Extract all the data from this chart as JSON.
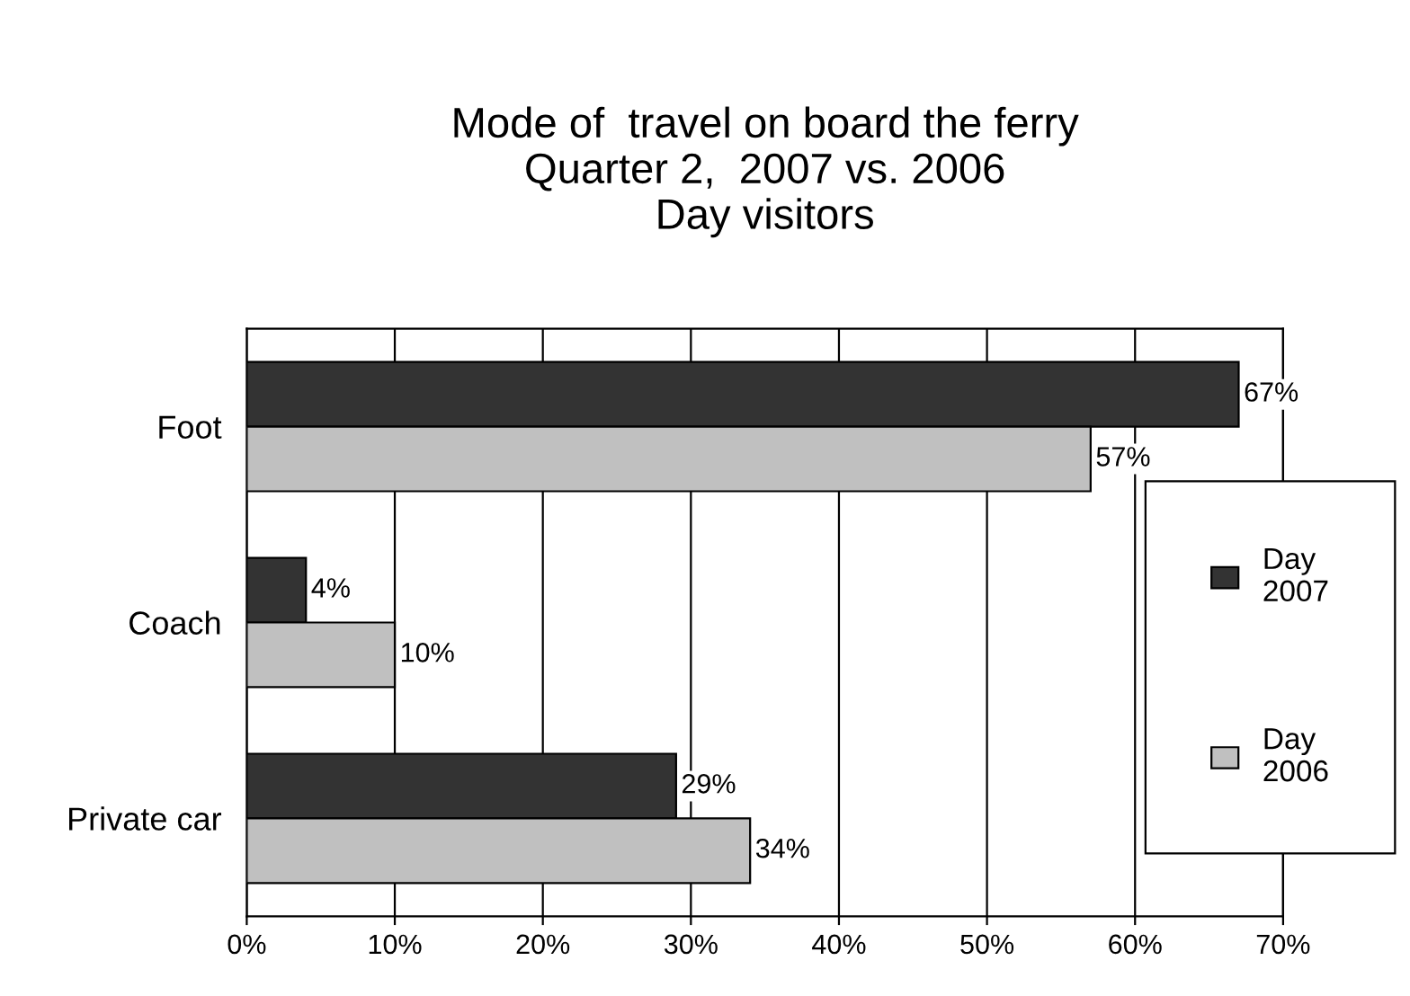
{
  "chart_data": {
    "type": "bar",
    "orientation": "horizontal",
    "title": "Mode of  travel on board the ferry\nQuarter 2,  2007 vs. 2006\nDay visitors",
    "categories": [
      "Foot",
      "Coach",
      "Private car"
    ],
    "series": [
      {
        "name": "Day 2007",
        "color": "#333333",
        "values": [
          67,
          4,
          29
        ],
        "value_labels": [
          "67%",
          "4%",
          "29%"
        ]
      },
      {
        "name": "Day 2006",
        "color": "#c0c0c0",
        "values": [
          57,
          10,
          34
        ],
        "value_labels": [
          "57%",
          "10%",
          "34%"
        ]
      }
    ],
    "xlim": [
      0,
      70
    ],
    "xticks": [
      {
        "value": 0,
        "label": "0%"
      },
      {
        "value": 10,
        "label": "10%"
      },
      {
        "value": 20,
        "label": "20%"
      },
      {
        "value": 30,
        "label": "30%"
      },
      {
        "value": 40,
        "label": "40%"
      },
      {
        "value": 50,
        "label": "50%"
      },
      {
        "value": 60,
        "label": "60%"
      },
      {
        "value": 70,
        "label": "70%"
      }
    ],
    "grid": "x",
    "legend": "right"
  }
}
